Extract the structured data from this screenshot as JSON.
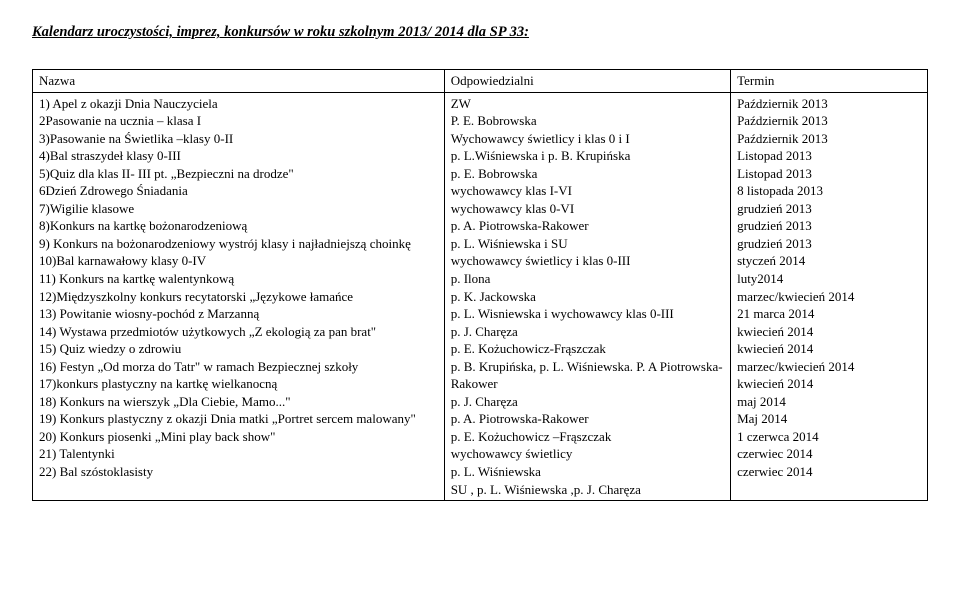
{
  "title": "Kalendarz uroczystości, imprez, konkursów w roku szkolnym 2013/ 2014 dla SP 33:",
  "header": {
    "nazwa": "Nazwa",
    "odpowiedzialni": "Odpowiedzialni",
    "termin": "Termin"
  },
  "rows": [
    {
      "nazwa": "1) Apel z okazji Dnia Nauczyciela",
      "odp": "ZW",
      "termin": "Październik 2013"
    },
    {
      "nazwa": "2Pasowanie na ucznia – klasa  I",
      "odp": "P. E. Bobrowska",
      "termin": "Październik 2013"
    },
    {
      "nazwa": "3)Pasowanie na Świetlika –klasy 0-II",
      "odp": "Wychowawcy świetlicy i klas 0 i I",
      "termin": "Październik 2013"
    },
    {
      "nazwa": "4)Bal straszydeł klasy 0-III",
      "odp": "p. L.Wiśniewska i p. B. Krupińska",
      "termin": "Listopad 2013"
    },
    {
      "nazwa": "5)Quiz dla klas II- III pt. „Bezpieczni na drodze\"",
      "odp": "p. E. Bobrowska",
      "termin": "Listopad 2013"
    },
    {
      "nazwa": "6Dzień Zdrowego Śniadania",
      "odp": "wychowawcy klas I-VI",
      "termin": "8 listopada 2013"
    },
    {
      "nazwa": "7)Wigilie klasowe",
      "odp": "wychowawcy klas 0-VI",
      "termin": "grudzień 2013"
    },
    {
      "nazwa": "8)Konkurs na kartkę bożonarodzeniową",
      "odp": "p. A. Piotrowska-Rakower",
      "termin": "grudzień 2013"
    },
    {
      "nazwa": "9) Konkurs na bożonarodzeniowy wystrój klasy i najładniejszą choinkę",
      "odp": "p. L. Wiśniewska i SU",
      "termin": "grudzień 2013"
    },
    {
      "nazwa": "10)Bal karnawałowy klasy 0-IV",
      "odp": "wychowawcy świetlicy i klas 0-III",
      "termin": "styczeń 2014"
    },
    {
      "nazwa": "11) Konkurs na kartkę walentynkową",
      "odp": "p. Ilona",
      "termin": "luty2014"
    },
    {
      "nazwa": "12)Międzyszkolny konkurs recytatorski „Językowe łamańce",
      "odp": "p. K. Jackowska",
      "termin": "marzec/kwiecień 2014"
    },
    {
      "nazwa": "13) Powitanie wiosny-pochód z Marzanną",
      "odp": "p. L. Wisniewska i wychowawcy klas 0-III",
      "termin": "21 marca 2014"
    },
    {
      "nazwa": "14) Wystawa przedmiotów użytkowych „Z ekologią za pan brat\"",
      "odp": "p. J. Charęza",
      "termin": "kwiecień 2014"
    },
    {
      "nazwa": "15) Quiz wiedzy o zdrowiu",
      "odp": "p. E. Kożuchowicz-Frąszczak",
      "termin": "kwiecień 2014"
    },
    {
      "nazwa": "16) Festyn „Od morza do Tatr\" w ramach Bezpiecznej szkoły",
      "odp": "p. B. Krupińska, p. L. Wiśniewska. P. A Piotrowska-Rakower",
      "termin": "marzec/kwiecień 2014"
    },
    {
      "nazwa": "17)konkurs plastyczny na kartkę wielkanocną",
      "odp": "p. J. Charęza",
      "termin": "kwiecień 2014"
    },
    {
      "nazwa": "18) Konkurs na wierszyk „Dla Ciebie, Mamo...\"",
      "odp": "p. A. Piotrowska-Rakower",
      "termin": "maj 2014"
    },
    {
      "nazwa": "19) Konkurs plastyczny  z okazji Dnia matki „Portret sercem malowany\"",
      "odp": "p. E. Kożuchowicz –Frąszczak",
      "termin": "Maj 2014"
    },
    {
      "nazwa": "20) Konkurs piosenki „Mini play back show\"",
      "odp": "wychowawcy świetlicy",
      "termin": "1 czerwca 2014"
    },
    {
      "nazwa": "21) Talentynki",
      "odp": "p. L. Wiśniewska",
      "termin": "czerwiec 2014"
    },
    {
      "nazwa": "22) Bal szóstoklasisty",
      "odp": "SU , p. L. Wiśniewska ,p. J. Charęza",
      "termin": "czerwiec 2014"
    }
  ]
}
